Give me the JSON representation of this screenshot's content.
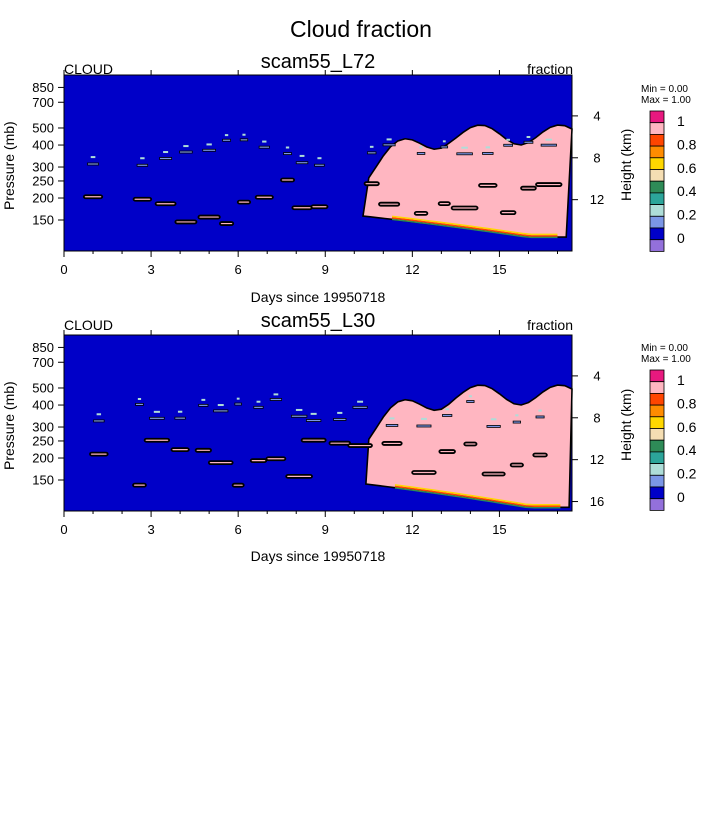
{
  "figure": {
    "title": "Cloud fraction",
    "palette": {
      "bg_blue": "#0010c8",
      "level_0": "#9370db",
      "level_0_1": "#0000c8",
      "level_0_2": "#7b96e6",
      "level_0_3": "#aeddd8",
      "level_0_4": "#2ca59a",
      "level_0_5": "#2e8b57",
      "level_0_6": "#f5deb3",
      "level_0_7": "#ffd700",
      "level_0_8": "#ff8c00",
      "level_0_9": "#ff4500",
      "level_1": "#ffb6c1",
      "level_top": "#e8197f"
    }
  },
  "chart_data": [
    {
      "type": "heatmap",
      "title": "scam55_L72",
      "variable": "CLOUD",
      "units": "fraction",
      "ylabel": "Pressure (mb)",
      "y2label": "Height (km)",
      "xlabel": "Days since 19950718",
      "x_ticks": [
        0,
        3,
        6,
        9,
        12,
        15
      ],
      "xlim": [
        0,
        17.5
      ],
      "y_ticks": [
        150,
        200,
        250,
        300,
        400,
        500,
        700,
        850
      ],
      "ylim": [
        1000,
        100
      ],
      "y_scale": "log",
      "y2_ticks": [
        4,
        8,
        12
      ],
      "legend": {
        "min_label": "Min =   0.00",
        "max_label": "Max =   1.00",
        "labels": [
          "1",
          "0.8",
          "0.6",
          "0.4",
          "0.2",
          "0"
        ],
        "placement": "right"
      },
      "features": {
        "cloud_columns_days": [
          1.0,
          2.7,
          3.5,
          4.2,
          5.0,
          5.6,
          6.2,
          6.9,
          7.7,
          8.2,
          8.8,
          10.6,
          11.2,
          12.3,
          13.1,
          13.8,
          14.6,
          15.3,
          16.0,
          16.7
        ]
      }
    },
    {
      "type": "heatmap",
      "title": "scam55_L30",
      "variable": "CLOUD",
      "units": "fraction",
      "ylabel": "Pressure (mb)",
      "y2label": "Height (km)",
      "xlabel": "Days since 19950718",
      "x_ticks": [
        0,
        3,
        6,
        9,
        12,
        15
      ],
      "xlim": [
        0,
        17.5
      ],
      "y_ticks": [
        150,
        200,
        250,
        300,
        400,
        500,
        700,
        850
      ],
      "ylim": [
        1000,
        100
      ],
      "y_scale": "log",
      "y2_ticks": [
        4,
        8,
        12,
        16
      ],
      "legend": {
        "min_label": "Min =   0.00",
        "max_label": "Max =   1.00",
        "labels": [
          "1",
          "0.8",
          "0.6",
          "0.4",
          "0.2",
          "0"
        ],
        "placement": "right"
      },
      "features": {
        "cloud_columns_days": [
          1.2,
          2.6,
          3.2,
          4.0,
          4.8,
          5.4,
          6.0,
          6.7,
          7.3,
          8.1,
          8.6,
          9.5,
          10.2,
          11.3,
          12.4,
          13.2,
          14.0,
          14.8,
          15.6,
          16.4
        ]
      }
    }
  ]
}
